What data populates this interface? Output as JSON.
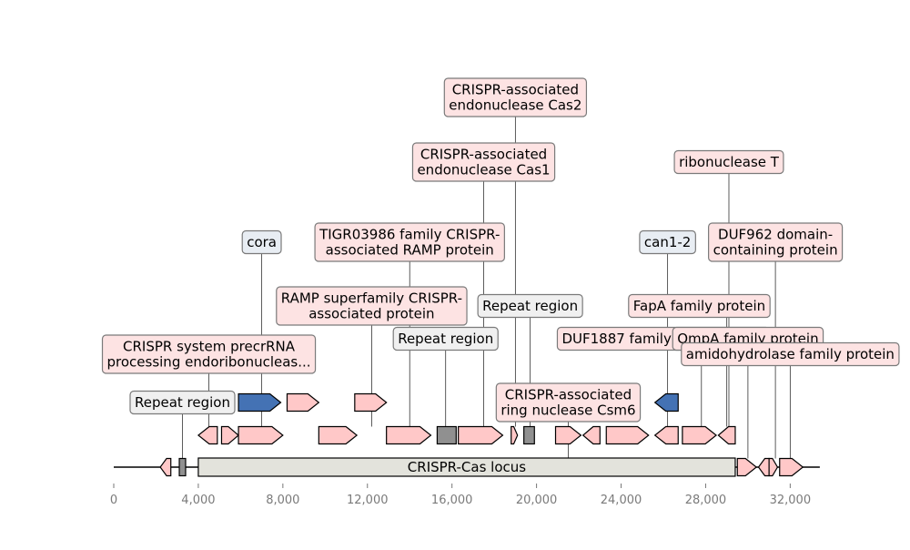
{
  "locus": {
    "label": "CRISPR-Cas locus",
    "start": 4000,
    "end": 29400,
    "color": "#e3e3dc"
  },
  "backbone": {
    "start": 0,
    "end": 33400
  },
  "axis": {
    "ticks": [
      0,
      4000,
      8000,
      12000,
      16000,
      20000,
      24000,
      28000,
      32000
    ],
    "tick_labels": [
      "0",
      "4,000",
      "8,000",
      "12,000",
      "16,000",
      "20,000",
      "24,000",
      "28,000",
      "32,000"
    ]
  },
  "colors": {
    "cds": "#ffc8c8",
    "cas_blue": "#4472b4",
    "repeat": "#909090",
    "label_pink": "#fde3e3",
    "label_blue": "#e8edf3",
    "label_gray": "#f0f0f0"
  },
  "features": [
    {
      "type": "cds",
      "row": 0,
      "start": 2200,
      "end": 2700,
      "strand": -1
    },
    {
      "type": "repeat",
      "row": 0,
      "start": 3100,
      "end": 3400,
      "strand": 0
    },
    {
      "type": "cds",
      "row": 1,
      "start": 4000,
      "end": 4900,
      "strand": -1
    },
    {
      "type": "cds",
      "row": 1,
      "start": 5100,
      "end": 5900,
      "strand": 1
    },
    {
      "type": "cds",
      "row": 1,
      "start": 5900,
      "end": 8000,
      "strand": 1
    },
    {
      "type": "cas",
      "row": 2,
      "start": 5900,
      "end": 7900,
      "strand": 1
    },
    {
      "type": "cds",
      "row": 2,
      "start": 8200,
      "end": 9700,
      "strand": 1
    },
    {
      "type": "cds",
      "row": 1,
      "start": 9700,
      "end": 11500,
      "strand": 1
    },
    {
      "type": "cds",
      "row": 2,
      "start": 11400,
      "end": 12900,
      "strand": 1
    },
    {
      "type": "cds",
      "row": 1,
      "start": 12900,
      "end": 15000,
      "strand": 1
    },
    {
      "type": "repeat",
      "row": 1,
      "start": 15300,
      "end": 16200,
      "strand": 0
    },
    {
      "type": "cds",
      "row": 1,
      "start": 16300,
      "end": 18400,
      "strand": 1
    },
    {
      "type": "cds",
      "row": 1,
      "start": 18800,
      "end": 19100,
      "strand": 1
    },
    {
      "type": "repeat",
      "row": 1,
      "start": 19400,
      "end": 19900,
      "strand": 0
    },
    {
      "type": "cds",
      "row": 1,
      "start": 20900,
      "end": 22100,
      "strand": 1
    },
    {
      "type": "cds",
      "row": 1,
      "start": 22200,
      "end": 23000,
      "strand": -1
    },
    {
      "type": "cds",
      "row": 1,
      "start": 23300,
      "end": 25300,
      "strand": 1
    },
    {
      "type": "cds",
      "row": 1,
      "start": 25600,
      "end": 26700,
      "strand": -1
    },
    {
      "type": "cas",
      "row": 2,
      "start": 25600,
      "end": 26700,
      "strand": -1
    },
    {
      "type": "cds",
      "row": 1,
      "start": 26900,
      "end": 28500,
      "strand": 1
    },
    {
      "type": "cds",
      "row": 1,
      "start": 28600,
      "end": 29400,
      "strand": -1
    },
    {
      "type": "cds",
      "row": 0,
      "start": 29500,
      "end": 30400,
      "strand": 1
    },
    {
      "type": "cds",
      "row": 0,
      "start": 30500,
      "end": 31000,
      "strand": -1
    },
    {
      "type": "cds",
      "row": 0,
      "start": 31000,
      "end": 31400,
      "strand": 1
    },
    {
      "type": "cds",
      "row": 0,
      "start": 31500,
      "end": 32600,
      "strand": 1
    }
  ],
  "annotations": [
    {
      "text": [
        "Repeat region"
      ],
      "kind": "gray",
      "anchor": 3250,
      "center": 3250,
      "level": 0
    },
    {
      "text": [
        "CRISPR system precrRNA",
        "processing endoribonucleas..."
      ],
      "kind": "pink",
      "anchor": 4500,
      "center": 4500,
      "level": 1
    },
    {
      "text": [
        "cora"
      ],
      "kind": "blue",
      "anchor": 7000,
      "center": 7000,
      "level": 4
    },
    {
      "text": [
        "RAMP superfamily CRISPR-",
        "associated protein"
      ],
      "kind": "pink",
      "anchor": 12200,
      "center": 12200,
      "level": 3
    },
    {
      "text": [
        "TIGR03986 family CRISPR-",
        "associated RAMP protein"
      ],
      "kind": "pink",
      "anchor": 14000,
      "center": 14000,
      "level": 4
    },
    {
      "text": [
        "Repeat region"
      ],
      "kind": "gray",
      "anchor": 15700,
      "center": 15700,
      "level": 2
    },
    {
      "text": [
        "CRISPR-associated",
        "endonuclease Cas1"
      ],
      "kind": "pink",
      "anchor": 17500,
      "center": 17500,
      "level": 5
    },
    {
      "text": [
        "CRISPR-associated",
        "endonuclease Cas2"
      ],
      "kind": "pink",
      "anchor": 19000,
      "center": 19000,
      "level": 6
    },
    {
      "text": [
        "Repeat region"
      ],
      "kind": "gray",
      "anchor": 19700,
      "center": 19700,
      "level": 3
    },
    {
      "text": [
        "CRISPR-associated",
        "ring nuclease Csm6"
      ],
      "kind": "pink",
      "anchor": 21500,
      "center": 21500,
      "level": 0
    },
    {
      "text": [
        "can1-2"
      ],
      "kind": "blue",
      "anchor": 26200,
      "center": 26200,
      "level": 4
    },
    {
      "text": [
        "DUF1887 family CARF protein"
      ],
      "kind": "pink",
      "anchor": 27800,
      "center": 26000,
      "level": 2
    },
    {
      "text": [
        "FapA family protein"
      ],
      "kind": "pink",
      "anchor": 29000,
      "center": 27700,
      "level": 3
    },
    {
      "text": [
        "ribonuclease T"
      ],
      "kind": "pink",
      "anchor": 29100,
      "center": 29100,
      "level": 5
    },
    {
      "text": [
        "OmpA family protein"
      ],
      "kind": "pink",
      "anchor": 30000,
      "center": 30000,
      "level": 2
    },
    {
      "text": [
        "DUF962 domain-",
        "containing protein"
      ],
      "kind": "pink",
      "anchor": 31300,
      "center": 31300,
      "level": 4
    },
    {
      "text": [
        "amidohydrolase family protein"
      ],
      "kind": "pink",
      "anchor": 32000,
      "center": 32000,
      "level": 1
    }
  ]
}
